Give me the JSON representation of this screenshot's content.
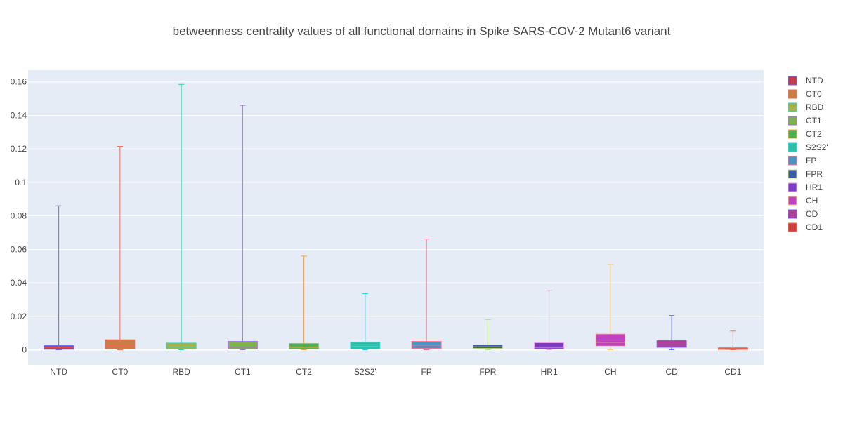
{
  "chart_data": {
    "type": "box",
    "title": "betweenness centrality values of all functional domains in Spike SARS-COV-2 Mutant6 variant",
    "xlabel": "",
    "ylabel": "",
    "ylim": [
      -0.009,
      0.167
    ],
    "yticks": [
      0,
      0.02,
      0.04,
      0.06,
      0.08,
      0.1,
      0.12,
      0.14,
      0.16
    ],
    "ytick_labels": [
      "0",
      "0.02",
      "0.04",
      "0.06",
      "0.08",
      "0.1",
      "0.12",
      "0.14",
      "0.16"
    ],
    "grid": true,
    "legend_position": "right",
    "series": [
      {
        "name": "NTD",
        "min": 0,
        "q1": 0.0003,
        "median": 0.0012,
        "q3": 0.0025,
        "max": 0.086,
        "color": "#c13e4a",
        "whisker": "#6a6ae8"
      },
      {
        "name": "CT0",
        "min": 0,
        "q1": 0.0005,
        "median": 0.0025,
        "q3": 0.006,
        "max": 0.1215,
        "color": "#c77f45",
        "whisker": "#ef6b55"
      },
      {
        "name": "RBD",
        "min": 0,
        "q1": 0.0005,
        "median": 0.0015,
        "q3": 0.004,
        "max": 0.1585,
        "color": "#a5b44a",
        "whisker": "#33d1a8"
      },
      {
        "name": "CT1",
        "min": 0,
        "q1": 0.0005,
        "median": 0.0015,
        "q3": 0.005,
        "max": 0.146,
        "color": "#7db34d",
        "whisker": "#a66ee0"
      },
      {
        "name": "CT2",
        "min": 0,
        "q1": 0.0005,
        "median": 0.0015,
        "q3": 0.0038,
        "max": 0.056,
        "color": "#4cb04f",
        "whisker": "#f0a04a"
      },
      {
        "name": "S2S2'",
        "min": 0,
        "q1": 0.0005,
        "median": 0.002,
        "q3": 0.0045,
        "max": 0.0335,
        "color": "#2fbfa6",
        "whisker": "#2fd4e8"
      },
      {
        "name": "FP",
        "min": 0,
        "q1": 0.0008,
        "median": 0.0028,
        "q3": 0.005,
        "max": 0.0662,
        "color": "#4a96c2",
        "whisker": "#ff6f90"
      },
      {
        "name": "FPR",
        "min": 0,
        "q1": 0.0008,
        "median": 0.0018,
        "q3": 0.003,
        "max": 0.018,
        "color": "#3c5aa8",
        "whisker": "#b8e07a"
      },
      {
        "name": "HR1",
        "min": 0,
        "q1": 0.0005,
        "median": 0.0015,
        "q3": 0.0042,
        "max": 0.0355,
        "color": "#7b3dc7",
        "whisker": "#ee9cf0"
      },
      {
        "name": "CH",
        "min": 0,
        "q1": 0.0022,
        "median": 0.0045,
        "q3": 0.0095,
        "max": 0.051,
        "color": "#c042c0",
        "whisker": "#ffd07a"
      },
      {
        "name": "CD",
        "min": 0,
        "q1": 0.0015,
        "median": 0.003,
        "q3": 0.0055,
        "max": 0.0205,
        "color": "#b0409a",
        "whisker": "#6a6ae8"
      },
      {
        "name": "CD1",
        "min": 0,
        "q1": 0.0002,
        "median": 0.0007,
        "q3": 0.0012,
        "max": 0.0112,
        "color": "#cc3f3f",
        "whisker": "#ef6b55"
      }
    ]
  },
  "colors": {
    "plot_bg": "#e5ecf6",
    "grid": "#ffffff",
    "text": "#444444"
  }
}
